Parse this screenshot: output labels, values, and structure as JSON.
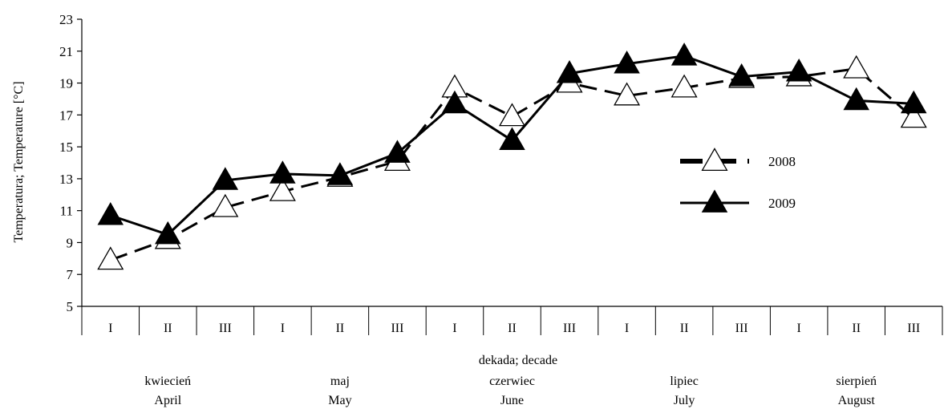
{
  "chart_data": {
    "type": "line",
    "ylabel": "Temperatura; Temperature [°C]",
    "xlabel": "dekada; decade",
    "ylim": [
      5,
      23
    ],
    "yticks": [
      5,
      7,
      9,
      11,
      13,
      15,
      17,
      19,
      21,
      23
    ],
    "categories": [
      "I",
      "II",
      "III",
      "I",
      "II",
      "III",
      "I",
      "II",
      "III",
      "I",
      "II",
      "III",
      "I",
      "II",
      "III"
    ],
    "months": [
      {
        "pl": "kwiecień",
        "en": "April"
      },
      {
        "pl": "maj",
        "en": "May"
      },
      {
        "pl": "czerwiec",
        "en": "June"
      },
      {
        "pl": "lipiec",
        "en": "July"
      },
      {
        "pl": "sierpień",
        "en": "August"
      }
    ],
    "series": [
      {
        "name": "2008",
        "style": "dashed",
        "marker": "open-triangle",
        "color": "#000000",
        "values": [
          7.9,
          9.2,
          11.2,
          12.2,
          13.1,
          14.1,
          18.7,
          16.9,
          19.0,
          18.2,
          18.7,
          19.3,
          19.4,
          19.9,
          16.8
        ]
      },
      {
        "name": "2009",
        "style": "solid",
        "marker": "filled-triangle",
        "color": "#000000",
        "values": [
          10.7,
          9.5,
          12.9,
          13.3,
          13.2,
          14.6,
          17.7,
          15.4,
          19.6,
          20.2,
          20.7,
          19.4,
          19.7,
          17.9,
          17.7
        ]
      }
    ],
    "legend_position": "right",
    "grid": false
  }
}
